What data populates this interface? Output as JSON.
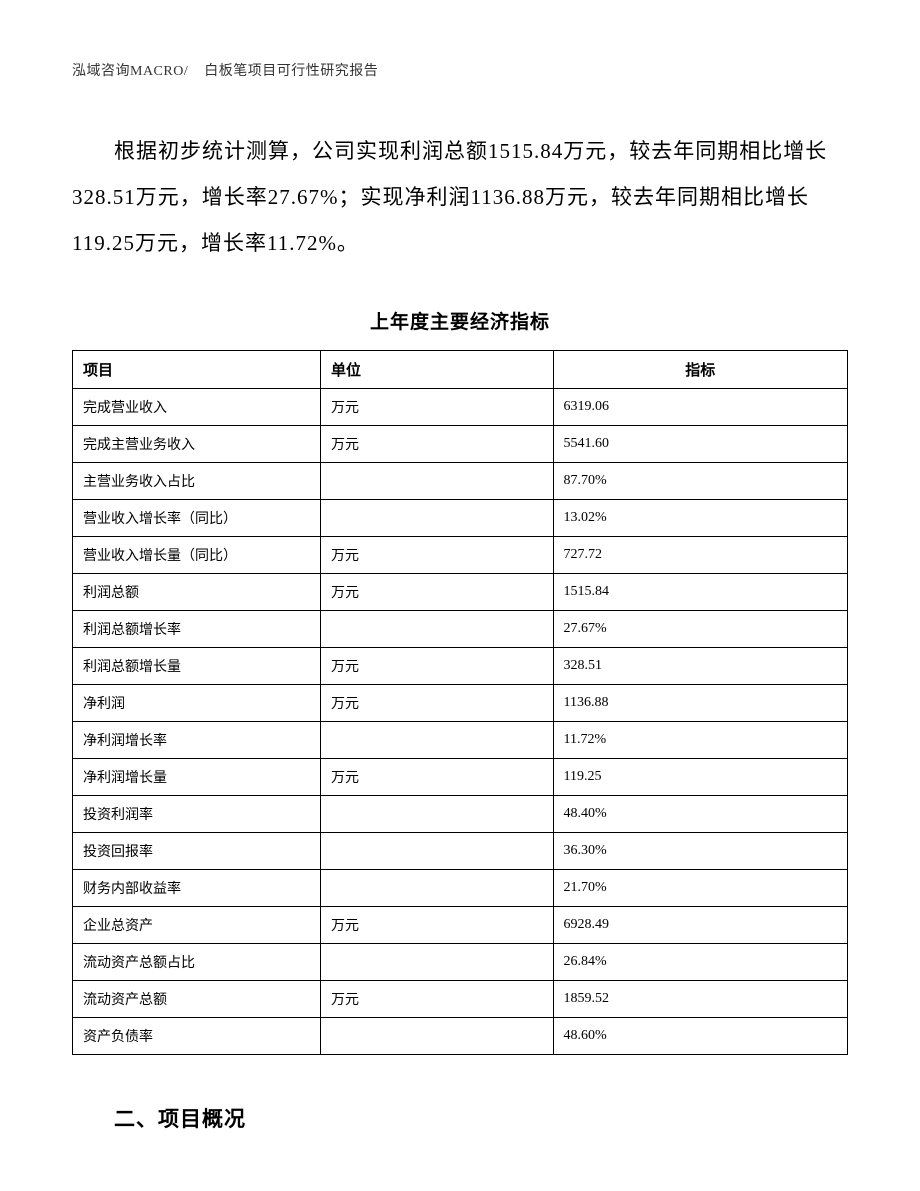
{
  "header": {
    "company": "泓域咨询MACRO/",
    "doc_title": "白板笔项目可行性研究报告"
  },
  "paragraph": {
    "text": "根据初步统计测算，公司实现利润总额1515.84万元，较去年同期相比增长328.51万元，增长率27.67%；实现净利润1136.88万元，较去年同期相比增长119.25万元，增长率11.72%。"
  },
  "table": {
    "title": "上年度主要经济指标",
    "columns": [
      "项目",
      "单位",
      "指标"
    ],
    "rows": [
      {
        "item": "完成营业收入",
        "unit": "万元",
        "value": "6319.06"
      },
      {
        "item": "完成主营业务收入",
        "unit": "万元",
        "value": "5541.60"
      },
      {
        "item": "主营业务收入占比",
        "unit": "",
        "value": "87.70%"
      },
      {
        "item": "营业收入增长率（同比）",
        "unit": "",
        "value": "13.02%"
      },
      {
        "item": "营业收入增长量（同比）",
        "unit": "万元",
        "value": "727.72"
      },
      {
        "item": "利润总额",
        "unit": "万元",
        "value": "1515.84"
      },
      {
        "item": "利润总额增长率",
        "unit": "",
        "value": "27.67%"
      },
      {
        "item": "利润总额增长量",
        "unit": "万元",
        "value": "328.51"
      },
      {
        "item": "净利润",
        "unit": "万元",
        "value": "1136.88"
      },
      {
        "item": "净利润增长率",
        "unit": "",
        "value": "11.72%"
      },
      {
        "item": "净利润增长量",
        "unit": "万元",
        "value": "119.25"
      },
      {
        "item": "投资利润率",
        "unit": "",
        "value": "48.40%"
      },
      {
        "item": "投资回报率",
        "unit": "",
        "value": "36.30%"
      },
      {
        "item": "财务内部收益率",
        "unit": "",
        "value": "21.70%"
      },
      {
        "item": "企业总资产",
        "unit": "万元",
        "value": "6928.49"
      },
      {
        "item": "流动资产总额占比",
        "unit": "",
        "value": "26.84%"
      },
      {
        "item": "流动资产总额",
        "unit": "万元",
        "value": "1859.52"
      },
      {
        "item": "资产负债率",
        "unit": "",
        "value": "48.60%"
      }
    ]
  },
  "section": {
    "heading": "二、项目概况"
  },
  "styles": {
    "page_bg": "#ffffff",
    "text_color": "#000000",
    "border_color": "#000000",
    "header_fontsize": 14,
    "body_fontsize": 21,
    "table_fontsize": 14,
    "table_title_fontsize": 19,
    "col_widths": [
      "32%",
      "30%",
      "38%"
    ]
  }
}
